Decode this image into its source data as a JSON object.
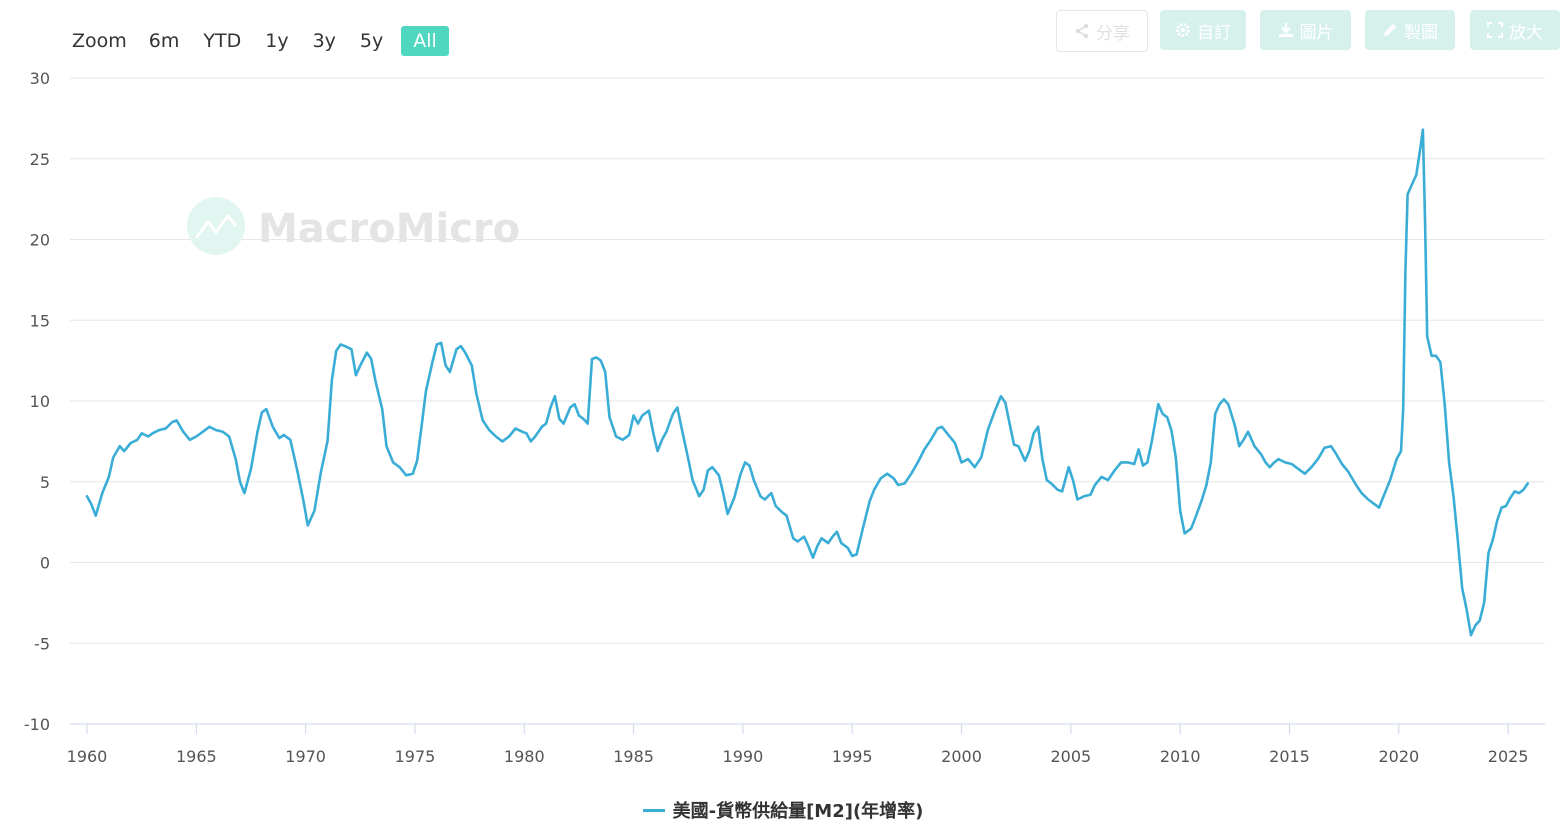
{
  "toolbar": {
    "zoom_label": "Zoom",
    "buttons": [
      "6m",
      "YTD",
      "1y",
      "3y",
      "5y",
      "All"
    ],
    "active": "All",
    "actions": {
      "share": "分享",
      "custom": "自訂",
      "image": "圖片",
      "draw": "製圖",
      "fullscreen": "放大"
    }
  },
  "watermark": "MacroMicro",
  "colors": {
    "line": "#3aadd6",
    "grid": "#e6e6e6",
    "accent": "#4fd8bf"
  },
  "chart_data": {
    "type": "line",
    "ylim": [
      -10,
      30
    ],
    "y_ticks": [
      "-10",
      "-5",
      "0",
      "5",
      "10",
      "15",
      "20",
      "25",
      "30"
    ],
    "xlim": [
      1960,
      2026
    ],
    "x_ticks": [
      "1960",
      "1965",
      "1970",
      "1975",
      "1980",
      "1985",
      "1990",
      "1995",
      "2000",
      "2005",
      "2010",
      "2015",
      "2020",
      "2025"
    ],
    "grid": true,
    "legend_position": "bottom-center",
    "series": [
      {
        "name": "美國-貨幣供給量[M2](年增率)",
        "points": [
          [
            1960.0,
            4.1
          ],
          [
            1960.2,
            3.6
          ],
          [
            1960.4,
            2.9
          ],
          [
            1960.7,
            4.3
          ],
          [
            1961.0,
            5.3
          ],
          [
            1961.2,
            6.5
          ],
          [
            1961.5,
            7.2
          ],
          [
            1961.7,
            6.9
          ],
          [
            1962.0,
            7.4
          ],
          [
            1962.3,
            7.6
          ],
          [
            1962.5,
            8.0
          ],
          [
            1962.8,
            7.8
          ],
          [
            1963.0,
            8.0
          ],
          [
            1963.3,
            8.2
          ],
          [
            1963.6,
            8.3
          ],
          [
            1963.9,
            8.7
          ],
          [
            1964.1,
            8.8
          ],
          [
            1964.4,
            8.1
          ],
          [
            1964.7,
            7.6
          ],
          [
            1965.0,
            7.8
          ],
          [
            1965.3,
            8.1
          ],
          [
            1965.6,
            8.4
          ],
          [
            1965.9,
            8.2
          ],
          [
            1966.2,
            8.1
          ],
          [
            1966.5,
            7.8
          ],
          [
            1966.8,
            6.4
          ],
          [
            1967.0,
            5.0
          ],
          [
            1967.2,
            4.3
          ],
          [
            1967.5,
            5.8
          ],
          [
            1967.8,
            8.1
          ],
          [
            1968.0,
            9.3
          ],
          [
            1968.2,
            9.5
          ],
          [
            1968.5,
            8.4
          ],
          [
            1968.8,
            7.7
          ],
          [
            1969.0,
            7.9
          ],
          [
            1969.3,
            7.6
          ],
          [
            1969.6,
            5.8
          ],
          [
            1969.9,
            3.8
          ],
          [
            1970.1,
            2.3
          ],
          [
            1970.4,
            3.2
          ],
          [
            1970.7,
            5.6
          ],
          [
            1971.0,
            7.5
          ],
          [
            1971.2,
            11.3
          ],
          [
            1971.4,
            13.1
          ],
          [
            1971.6,
            13.5
          ],
          [
            1971.8,
            13.4
          ],
          [
            1972.1,
            13.2
          ],
          [
            1972.3,
            11.6
          ],
          [
            1972.5,
            12.2
          ],
          [
            1972.8,
            13.0
          ],
          [
            1973.0,
            12.6
          ],
          [
            1973.2,
            11.2
          ],
          [
            1973.5,
            9.5
          ],
          [
            1973.7,
            7.2
          ],
          [
            1974.0,
            6.2
          ],
          [
            1974.3,
            5.9
          ],
          [
            1974.6,
            5.4
          ],
          [
            1974.9,
            5.5
          ],
          [
            1975.1,
            6.3
          ],
          [
            1975.3,
            8.4
          ],
          [
            1975.5,
            10.6
          ],
          [
            1975.8,
            12.4
          ],
          [
            1976.0,
            13.5
          ],
          [
            1976.2,
            13.6
          ],
          [
            1976.4,
            12.2
          ],
          [
            1976.6,
            11.8
          ],
          [
            1976.9,
            13.2
          ],
          [
            1977.1,
            13.4
          ],
          [
            1977.3,
            13.0
          ],
          [
            1977.6,
            12.2
          ],
          [
            1977.8,
            10.5
          ],
          [
            1978.1,
            8.8
          ],
          [
            1978.4,
            8.2
          ],
          [
            1978.7,
            7.8
          ],
          [
            1979.0,
            7.5
          ],
          [
            1979.3,
            7.8
          ],
          [
            1979.6,
            8.3
          ],
          [
            1979.9,
            8.1
          ],
          [
            1980.1,
            8.0
          ],
          [
            1980.3,
            7.5
          ],
          [
            1980.5,
            7.8
          ],
          [
            1980.8,
            8.4
          ],
          [
            1981.0,
            8.6
          ],
          [
            1981.2,
            9.6
          ],
          [
            1981.4,
            10.3
          ],
          [
            1981.6,
            8.9
          ],
          [
            1981.8,
            8.6
          ],
          [
            1982.1,
            9.6
          ],
          [
            1982.3,
            9.8
          ],
          [
            1982.5,
            9.1
          ],
          [
            1982.7,
            8.9
          ],
          [
            1982.9,
            8.6
          ],
          [
            1983.1,
            12.6
          ],
          [
            1983.3,
            12.7
          ],
          [
            1983.5,
            12.5
          ],
          [
            1983.7,
            11.8
          ],
          [
            1983.9,
            9.0
          ],
          [
            1984.2,
            7.8
          ],
          [
            1984.5,
            7.6
          ],
          [
            1984.8,
            7.9
          ],
          [
            1985.0,
            9.1
          ],
          [
            1985.2,
            8.6
          ],
          [
            1985.4,
            9.1
          ],
          [
            1985.7,
            9.4
          ],
          [
            1985.9,
            8.0
          ],
          [
            1986.1,
            6.9
          ],
          [
            1986.3,
            7.6
          ],
          [
            1986.5,
            8.1
          ],
          [
            1986.8,
            9.2
          ],
          [
            1987.0,
            9.6
          ],
          [
            1987.2,
            8.3
          ],
          [
            1987.5,
            6.4
          ],
          [
            1987.7,
            5.1
          ],
          [
            1988.0,
            4.1
          ],
          [
            1988.2,
            4.5
          ],
          [
            1988.4,
            5.7
          ],
          [
            1988.6,
            5.9
          ],
          [
            1988.9,
            5.4
          ],
          [
            1989.1,
            4.3
          ],
          [
            1989.3,
            3.0
          ],
          [
            1989.6,
            4.0
          ],
          [
            1989.9,
            5.5
          ],
          [
            1990.1,
            6.2
          ],
          [
            1990.3,
            6.0
          ],
          [
            1990.5,
            5.1
          ],
          [
            1990.8,
            4.1
          ],
          [
            1991.0,
            3.9
          ],
          [
            1991.3,
            4.3
          ],
          [
            1991.5,
            3.5
          ],
          [
            1991.8,
            3.1
          ],
          [
            1992.0,
            2.9
          ],
          [
            1992.3,
            1.5
          ],
          [
            1992.5,
            1.3
          ],
          [
            1992.8,
            1.6
          ],
          [
            1993.0,
            1.0
          ],
          [
            1993.2,
            0.3
          ],
          [
            1993.4,
            1.0
          ],
          [
            1993.6,
            1.5
          ],
          [
            1993.9,
            1.2
          ],
          [
            1994.1,
            1.6
          ],
          [
            1994.3,
            1.9
          ],
          [
            1994.5,
            1.2
          ],
          [
            1994.8,
            0.9
          ],
          [
            1995.0,
            0.4
          ],
          [
            1995.2,
            0.5
          ],
          [
            1995.5,
            2.2
          ],
          [
            1995.8,
            3.8
          ],
          [
            1996.0,
            4.5
          ],
          [
            1996.3,
            5.2
          ],
          [
            1996.6,
            5.5
          ],
          [
            1996.9,
            5.2
          ],
          [
            1997.1,
            4.8
          ],
          [
            1997.4,
            4.9
          ],
          [
            1997.7,
            5.5
          ],
          [
            1998.0,
            6.2
          ],
          [
            1998.3,
            7.0
          ],
          [
            1998.6,
            7.6
          ],
          [
            1998.9,
            8.3
          ],
          [
            1999.1,
            8.4
          ],
          [
            1999.4,
            7.9
          ],
          [
            1999.7,
            7.4
          ],
          [
            2000.0,
            6.2
          ],
          [
            2000.3,
            6.4
          ],
          [
            2000.6,
            5.9
          ],
          [
            2000.9,
            6.5
          ],
          [
            2001.2,
            8.2
          ],
          [
            2001.5,
            9.3
          ],
          [
            2001.8,
            10.3
          ],
          [
            2002.0,
            9.9
          ],
          [
            2002.2,
            8.6
          ],
          [
            2002.4,
            7.3
          ],
          [
            2002.6,
            7.2
          ],
          [
            2002.9,
            6.3
          ],
          [
            2003.1,
            6.9
          ],
          [
            2003.3,
            8.0
          ],
          [
            2003.5,
            8.4
          ],
          [
            2003.7,
            6.4
          ],
          [
            2003.9,
            5.1
          ],
          [
            2004.1,
            4.9
          ],
          [
            2004.4,
            4.5
          ],
          [
            2004.6,
            4.4
          ],
          [
            2004.9,
            5.9
          ],
          [
            2005.1,
            5.1
          ],
          [
            2005.3,
            3.9
          ],
          [
            2005.6,
            4.1
          ],
          [
            2005.9,
            4.2
          ],
          [
            2006.1,
            4.8
          ],
          [
            2006.4,
            5.3
          ],
          [
            2006.7,
            5.1
          ],
          [
            2007.0,
            5.7
          ],
          [
            2007.3,
            6.2
          ],
          [
            2007.6,
            6.2
          ],
          [
            2007.9,
            6.1
          ],
          [
            2008.1,
            7.0
          ],
          [
            2008.3,
            6.0
          ],
          [
            2008.5,
            6.2
          ],
          [
            2008.7,
            7.5
          ],
          [
            2009.0,
            9.8
          ],
          [
            2009.2,
            9.2
          ],
          [
            2009.4,
            9.0
          ],
          [
            2009.6,
            8.2
          ],
          [
            2009.8,
            6.5
          ],
          [
            2010.0,
            3.2
          ],
          [
            2010.2,
            1.8
          ],
          [
            2010.5,
            2.1
          ],
          [
            2010.7,
            2.8
          ],
          [
            2011.0,
            3.9
          ],
          [
            2011.2,
            4.8
          ],
          [
            2011.4,
            6.2
          ],
          [
            2011.6,
            9.2
          ],
          [
            2011.8,
            9.8
          ],
          [
            2012.0,
            10.1
          ],
          [
            2012.2,
            9.8
          ],
          [
            2012.5,
            8.5
          ],
          [
            2012.7,
            7.2
          ],
          [
            2012.9,
            7.6
          ],
          [
            2013.1,
            8.1
          ],
          [
            2013.4,
            7.2
          ],
          [
            2013.7,
            6.7
          ],
          [
            2013.9,
            6.2
          ],
          [
            2014.1,
            5.9
          ],
          [
            2014.3,
            6.2
          ],
          [
            2014.5,
            6.4
          ],
          [
            2014.8,
            6.2
          ],
          [
            2015.1,
            6.1
          ],
          [
            2015.4,
            5.8
          ],
          [
            2015.7,
            5.5
          ],
          [
            2016.0,
            5.9
          ],
          [
            2016.3,
            6.4
          ],
          [
            2016.6,
            7.1
          ],
          [
            2016.9,
            7.2
          ],
          [
            2017.1,
            6.8
          ],
          [
            2017.4,
            6.1
          ],
          [
            2017.7,
            5.6
          ],
          [
            2018.0,
            4.9
          ],
          [
            2018.3,
            4.3
          ],
          [
            2018.6,
            3.9
          ],
          [
            2018.9,
            3.6
          ],
          [
            2019.1,
            3.4
          ],
          [
            2019.3,
            4.1
          ],
          [
            2019.6,
            5.1
          ],
          [
            2019.9,
            6.4
          ],
          [
            2020.1,
            6.9
          ],
          [
            2020.2,
            9.5
          ],
          [
            2020.3,
            18.0
          ],
          [
            2020.4,
            22.8
          ],
          [
            2020.6,
            23.4
          ],
          [
            2020.8,
            24.0
          ],
          [
            2021.0,
            25.8
          ],
          [
            2021.1,
            26.8
          ],
          [
            2021.2,
            21.0
          ],
          [
            2021.3,
            14.0
          ],
          [
            2021.5,
            12.8
          ],
          [
            2021.7,
            12.8
          ],
          [
            2021.9,
            12.4
          ],
          [
            2022.1,
            9.8
          ],
          [
            2022.3,
            6.2
          ],
          [
            2022.5,
            4.1
          ],
          [
            2022.7,
            1.3
          ],
          [
            2022.9,
            -1.6
          ],
          [
            2023.1,
            -2.9
          ],
          [
            2023.3,
            -4.5
          ],
          [
            2023.5,
            -3.9
          ],
          [
            2023.7,
            -3.6
          ],
          [
            2023.9,
            -2.5
          ],
          [
            2024.1,
            0.6
          ],
          [
            2024.3,
            1.4
          ],
          [
            2024.5,
            2.6
          ],
          [
            2024.7,
            3.4
          ],
          [
            2024.9,
            3.5
          ],
          [
            2025.1,
            4.0
          ],
          [
            2025.3,
            4.4
          ],
          [
            2025.5,
            4.3
          ],
          [
            2025.7,
            4.5
          ],
          [
            2025.9,
            4.9
          ]
        ]
      }
    ]
  }
}
